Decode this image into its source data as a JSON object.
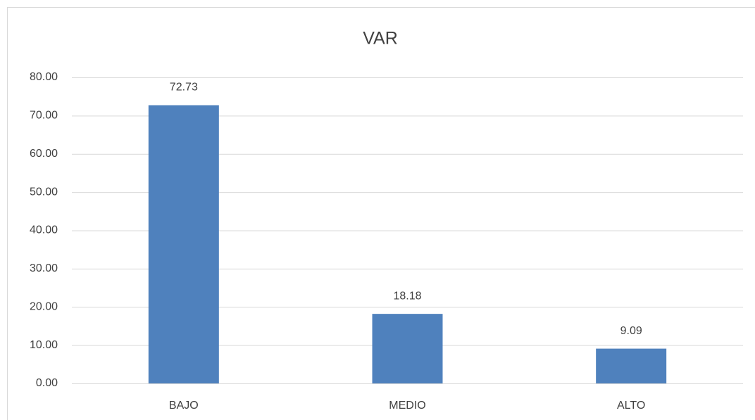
{
  "chart_data": {
    "type": "bar",
    "title": "VAR",
    "categories": [
      "BAJO",
      "MEDIO",
      "ALTO"
    ],
    "values": [
      72.73,
      18.18,
      9.09
    ],
    "color": "#4f81bd",
    "ylim": [
      0,
      80
    ],
    "yticks": [
      {
        "value": 0,
        "label": "0.00"
      },
      {
        "value": 10,
        "label": "10.00"
      },
      {
        "value": 20,
        "label": "20.00"
      },
      {
        "value": 30,
        "label": "30.00"
      },
      {
        "value": 40,
        "label": "40.00"
      },
      {
        "value": 50,
        "label": "50.00"
      },
      {
        "value": 60,
        "label": "60.00"
      },
      {
        "value": 70,
        "label": "70.00"
      },
      {
        "value": 80,
        "label": "80.00"
      }
    ],
    "grid": true
  }
}
